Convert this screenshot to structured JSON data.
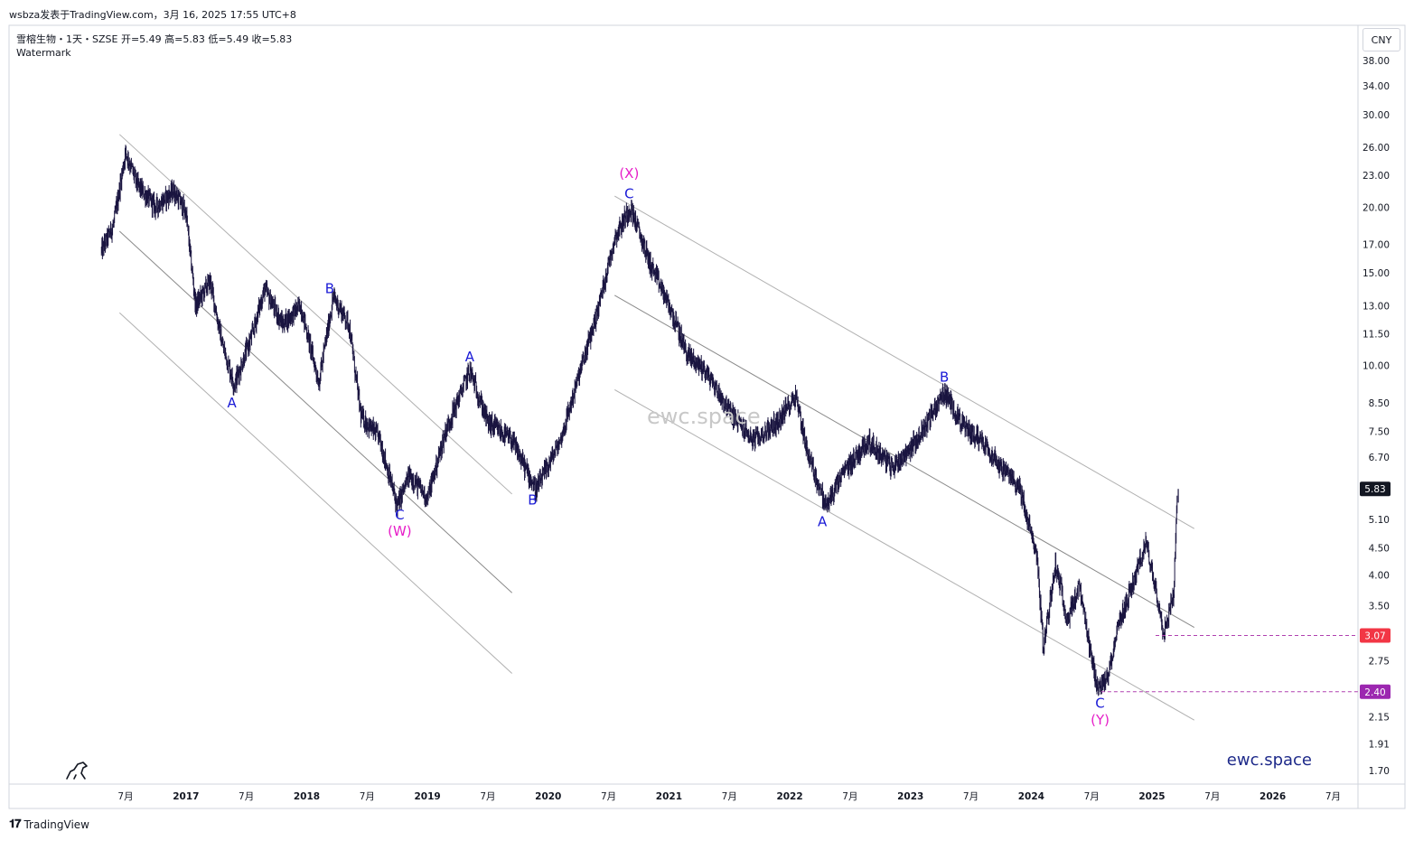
{
  "attribution": "wsbza发表于TradingView.com，3月 16, 2025 17:55 UTC+8",
  "symbol_line": "雪榕生物・1天・SZSE  开=5.49  高=5.83  低=5.49  收=5.83",
  "watermark_label": "Watermark",
  "currency": "CNY",
  "center_watermark": "ewc.space",
  "brand_corner": "ewc.space",
  "footer_logo": "TradingView",
  "colors": {
    "candle": "#1a1540",
    "wave_minor": "#1a1ad6",
    "wave_major": "#e61ec8",
    "channel": "#b0b0b0",
    "channel_mid": "#8a8a8a",
    "hline": "#b040b0",
    "last_price_badge": "#131722",
    "level_307_badge": "#f23645",
    "level_240_badge": "#9c27b0"
  },
  "chart_data": {
    "type": "candlestick",
    "scale": "log",
    "title": "",
    "y_ticks": [
      "38.00",
      "34.00",
      "30.00",
      "26.00",
      "23.00",
      "20.00",
      "17.00",
      "15.00",
      "13.00",
      "11.50",
      "10.00",
      "8.50",
      "7.50",
      "6.70",
      "5.10",
      "4.50",
      "4.00",
      "3.50",
      "2.75",
      "2.15",
      "1.91",
      "1.70"
    ],
    "x_ticks": [
      "7月",
      "2017",
      "7月",
      "2018",
      "7月",
      "2019",
      "7月",
      "2020",
      "7月",
      "2021",
      "7月",
      "2022",
      "7月",
      "2023",
      "7月",
      "2024",
      "7月",
      "2025",
      "7月",
      "2026",
      "7月"
    ],
    "last_price": "5.83",
    "levels": [
      {
        "label": "3.07",
        "value": 3.07
      },
      {
        "label": "2.40",
        "value": 2.4
      }
    ],
    "price_path": [
      {
        "t": 2016.3,
        "p": 16.5
      },
      {
        "t": 2016.4,
        "p": 18.5
      },
      {
        "t": 2016.5,
        "p": 25.5
      },
      {
        "t": 2016.6,
        "p": 22.0
      },
      {
        "t": 2016.75,
        "p": 20.0
      },
      {
        "t": 2016.9,
        "p": 21.5
      },
      {
        "t": 2017.0,
        "p": 19.5
      },
      {
        "t": 2017.08,
        "p": 13.0
      },
      {
        "t": 2017.2,
        "p": 14.5
      },
      {
        "t": 2017.3,
        "p": 11.0
      },
      {
        "t": 2017.4,
        "p": 9.2
      },
      {
        "t": 2017.55,
        "p": 11.5
      },
      {
        "t": 2017.65,
        "p": 14.0
      },
      {
        "t": 2017.8,
        "p": 12.0
      },
      {
        "t": 2017.95,
        "p": 13.0
      },
      {
        "t": 2018.1,
        "p": 9.3
      },
      {
        "t": 2018.22,
        "p": 13.5
      },
      {
        "t": 2018.35,
        "p": 12.0
      },
      {
        "t": 2018.45,
        "p": 8.0
      },
      {
        "t": 2018.6,
        "p": 7.3
      },
      {
        "t": 2018.75,
        "p": 5.4
      },
      {
        "t": 2018.85,
        "p": 6.2
      },
      {
        "t": 2019.0,
        "p": 5.6
      },
      {
        "t": 2019.15,
        "p": 7.5
      },
      {
        "t": 2019.35,
        "p": 9.8
      },
      {
        "t": 2019.5,
        "p": 7.8
      },
      {
        "t": 2019.7,
        "p": 7.2
      },
      {
        "t": 2019.9,
        "p": 5.8
      },
      {
        "t": 2020.1,
        "p": 7.2
      },
      {
        "t": 2020.25,
        "p": 9.5
      },
      {
        "t": 2020.4,
        "p": 12.5
      },
      {
        "t": 2020.55,
        "p": 17.5
      },
      {
        "t": 2020.68,
        "p": 20.0
      },
      {
        "t": 2020.85,
        "p": 15.5
      },
      {
        "t": 2021.0,
        "p": 13.0
      },
      {
        "t": 2021.15,
        "p": 10.5
      },
      {
        "t": 2021.3,
        "p": 9.8
      },
      {
        "t": 2021.5,
        "p": 8.2
      },
      {
        "t": 2021.7,
        "p": 7.2
      },
      {
        "t": 2021.9,
        "p": 7.8
      },
      {
        "t": 2022.05,
        "p": 8.8
      },
      {
        "t": 2022.15,
        "p": 6.8
      },
      {
        "t": 2022.3,
        "p": 5.4
      },
      {
        "t": 2022.45,
        "p": 6.3
      },
      {
        "t": 2022.65,
        "p": 7.2
      },
      {
        "t": 2022.85,
        "p": 6.4
      },
      {
        "t": 2023.05,
        "p": 7.2
      },
      {
        "t": 2023.28,
        "p": 8.9
      },
      {
        "t": 2023.45,
        "p": 7.6
      },
      {
        "t": 2023.6,
        "p": 7.2
      },
      {
        "t": 2023.75,
        "p": 6.4
      },
      {
        "t": 2023.9,
        "p": 5.9
      },
      {
        "t": 2024.05,
        "p": 4.3
      },
      {
        "t": 2024.1,
        "p": 2.9
      },
      {
        "t": 2024.2,
        "p": 4.2
      },
      {
        "t": 2024.3,
        "p": 3.3
      },
      {
        "t": 2024.4,
        "p": 3.8
      },
      {
        "t": 2024.48,
        "p": 2.9
      },
      {
        "t": 2024.55,
        "p": 2.45
      },
      {
        "t": 2024.62,
        "p": 2.5
      },
      {
        "t": 2024.72,
        "p": 3.2
      },
      {
        "t": 2024.85,
        "p": 3.9
      },
      {
        "t": 2024.95,
        "p": 4.6
      },
      {
        "t": 2025.03,
        "p": 3.8
      },
      {
        "t": 2025.1,
        "p": 3.1
      },
      {
        "t": 2025.18,
        "p": 3.7
      },
      {
        "t": 2025.21,
        "p": 5.83
      }
    ],
    "wave_labels": [
      {
        "text": "A",
        "t": 2017.38,
        "p": 8.5,
        "kind": "minor",
        "pos": "below"
      },
      {
        "text": "B",
        "t": 2018.19,
        "p": 14.0,
        "kind": "minor",
        "pos": "above"
      },
      {
        "text": "C",
        "t": 2018.77,
        "p": 5.2,
        "kind": "minor",
        "pos": "below"
      },
      {
        "text": "(W)",
        "t": 2018.77,
        "p": 4.85,
        "kind": "major",
        "pos": "below"
      },
      {
        "text": "A",
        "t": 2019.35,
        "p": 10.4,
        "kind": "minor",
        "pos": "above"
      },
      {
        "text": "B",
        "t": 2019.87,
        "p": 5.55,
        "kind": "minor",
        "pos": "below"
      },
      {
        "text": "C",
        "t": 2020.67,
        "p": 21.2,
        "kind": "minor",
        "pos": "above"
      },
      {
        "text": "(X)",
        "t": 2020.67,
        "p": 23.2,
        "kind": "major",
        "pos": "above"
      },
      {
        "text": "A",
        "t": 2022.27,
        "p": 5.05,
        "kind": "minor",
        "pos": "below"
      },
      {
        "text": "B",
        "t": 2023.28,
        "p": 9.5,
        "kind": "minor",
        "pos": "above"
      },
      {
        "text": "C",
        "t": 2024.57,
        "p": 2.28,
        "kind": "minor",
        "pos": "below"
      },
      {
        "text": "(Y)",
        "t": 2024.57,
        "p": 2.12,
        "kind": "major",
        "pos": "below"
      }
    ],
    "channels": [
      {
        "name": "first-upper",
        "t1": 2016.45,
        "p1": 27.5,
        "t2": 2019.7,
        "p2": 5.7
      },
      {
        "name": "first-mid",
        "t1": 2016.45,
        "p1": 18.0,
        "t2": 2019.7,
        "p2": 3.7
      },
      {
        "name": "first-lower",
        "t1": 2016.45,
        "p1": 12.6,
        "t2": 2019.7,
        "p2": 2.6
      },
      {
        "name": "second-upper",
        "t1": 2020.55,
        "p1": 21.0,
        "t2": 2025.35,
        "p2": 4.9
      },
      {
        "name": "second-mid",
        "t1": 2020.55,
        "p1": 13.6,
        "t2": 2025.35,
        "p2": 3.18
      },
      {
        "name": "second-lower",
        "t1": 2020.55,
        "p1": 9.0,
        "t2": 2025.35,
        "p2": 2.12
      }
    ]
  }
}
